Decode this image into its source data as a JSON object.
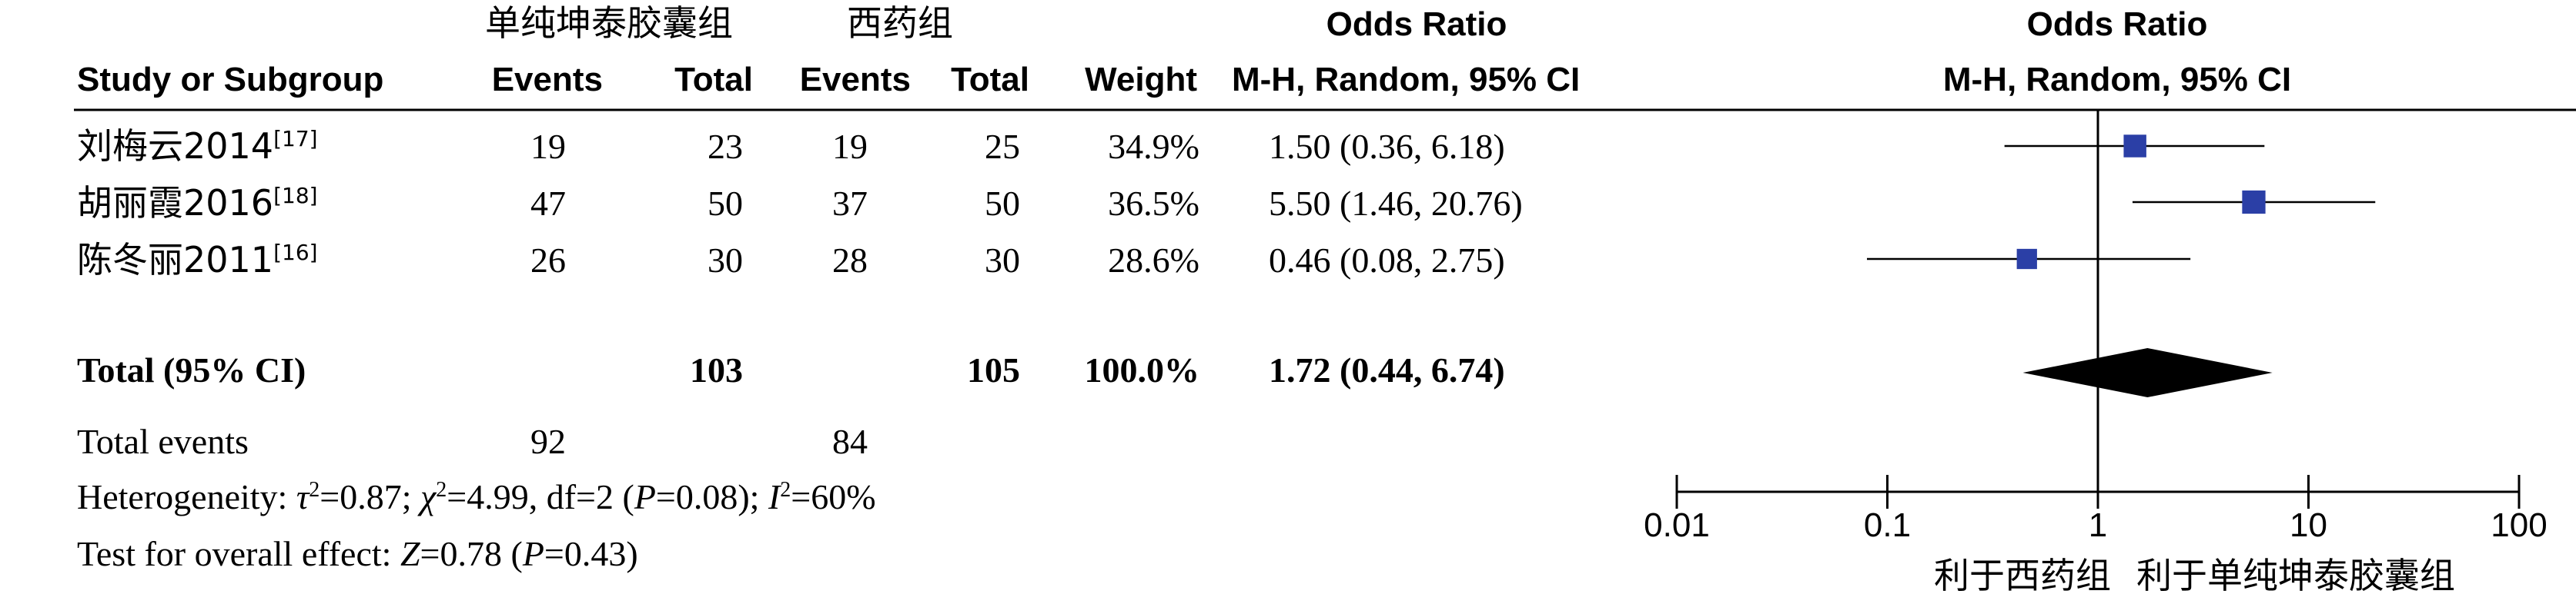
{
  "header": {
    "group1_name": "单纯坤泰胶囊组",
    "group2_name": "西药组",
    "or_title_left": "Odds Ratio",
    "or_title_right": "Odds Ratio",
    "study_col": "Study or Subgroup",
    "events1": "Events",
    "total1": "Total",
    "events2": "Events",
    "total2": "Total",
    "weight": "Weight",
    "method_left": "M-H, Random, 95% CI",
    "method_right": "M-H, Random, 95% CI"
  },
  "studies": [
    {
      "name": "刘梅云2014",
      "ref": "[17]",
      "events1": "19",
      "total1": "23",
      "events2": "19",
      "total2": "25",
      "weight": "34.9%",
      "ci_text": "1.50 (0.36, 6.18)"
    },
    {
      "name": "胡丽霞2016",
      "ref": "[18]",
      "events1": "47",
      "total1": "50",
      "events2": "37",
      "total2": "50",
      "weight": "36.5%",
      "ci_text": "5.50 (1.46, 20.76)"
    },
    {
      "name": "陈冬丽2011",
      "ref": "[16]",
      "events1": "26",
      "total1": "30",
      "events2": "28",
      "total2": "30",
      "weight": "28.6%",
      "ci_text": "0.46 (0.08, 2.75)"
    }
  ],
  "total": {
    "label": "Total (95% CI)",
    "total1": "103",
    "total2": "105",
    "weight": "100.0%",
    "ci_text": "1.72 (0.44, 6.74)"
  },
  "footer": {
    "events_label": "Total events",
    "events1": "92",
    "events2": "84",
    "het_prefix": "Heterogeneity: ",
    "tau": "τ",
    "het_a": "=0.87; ",
    "chi": "χ",
    "het_b": "=4.99, df=2 (",
    "p1": "P",
    "het_c": "=0.08); ",
    "i": "I",
    "het_d": "=60%",
    "sq": "2",
    "test_prefix": "Test for overall effect: ",
    "z": "Z",
    "test_a": "=0.78 (",
    "p2": "P",
    "test_b": "=0.43)"
  },
  "axis": {
    "favours_left": "利于西药组",
    "favours_right": "利于单纯坤泰胶囊组"
  },
  "chart_data": {
    "type": "forest",
    "scale": "log",
    "xlim": [
      0.01,
      100
    ],
    "ticks": [
      0.01,
      0.1,
      1,
      10,
      100
    ],
    "tick_labels": [
      "0.01",
      "0.1",
      "1",
      "10",
      "100"
    ],
    "reference_line": 1,
    "marker_color": "#2b3fa6",
    "points": [
      {
        "study": "刘梅云2014",
        "or": 1.5,
        "lower": 0.36,
        "upper": 6.18,
        "weight": 34.9
      },
      {
        "study": "胡丽霞2016",
        "or": 5.5,
        "lower": 1.46,
        "upper": 20.76,
        "weight": 36.5
      },
      {
        "study": "陈冬丽2011",
        "or": 0.46,
        "lower": 0.08,
        "upper": 2.75,
        "weight": 28.6
      }
    ],
    "summary": {
      "or": 1.72,
      "lower": 0.44,
      "upper": 6.74
    }
  }
}
